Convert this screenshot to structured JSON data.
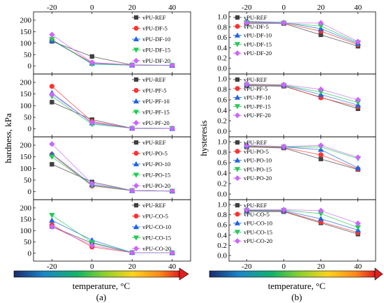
{
  "labels": {
    "hardness_ylabel": "hardness, kPa",
    "hysteresis_ylabel": "hysteresis",
    "xlabel_left": "temperature, °C",
    "xlabel_right": "temperature, °C",
    "sub_a": "(a)",
    "sub_b": "(b)"
  },
  "colors": {
    "REF": "#404040",
    "5": "#ff3333",
    "10": "#1e64e6",
    "15": "#22cc55",
    "20": "#cc66ff"
  },
  "chart_data": [
    {
      "type": "line",
      "quantity": "hardness",
      "group": "DF",
      "x": [
        -20,
        0,
        20,
        40
      ],
      "xlim": [
        -25,
        45
      ],
      "ylim": [
        -10,
        215
      ],
      "xticks": [
        -20,
        0,
        20,
        40
      ],
      "yticks": [
        0,
        50,
        100,
        150,
        200
      ],
      "series": [
        {
          "name": "vPU-REF",
          "key": "REF",
          "values": [
            108,
            42,
            5,
            3
          ]
        },
        {
          "name": "vPU-DF-5",
          "key": "5",
          "values": [
            113,
            15,
            5,
            3
          ]
        },
        {
          "name": "vPU-DF-10",
          "key": "10",
          "values": [
            112,
            12,
            4,
            3
          ]
        },
        {
          "name": "vPU-DF-15",
          "key": "15",
          "values": [
            117,
            8,
            4,
            3
          ]
        },
        {
          "name": "vPU-DF-20",
          "key": "20",
          "values": [
            137,
            16,
            5,
            4
          ]
        }
      ]
    },
    {
      "type": "line",
      "quantity": "hardness",
      "group": "PF",
      "x": [
        -20,
        0,
        20,
        40
      ],
      "xlim": [
        -25,
        45
      ],
      "ylim": [
        -10,
        215
      ],
      "xticks": [
        -20,
        0,
        20,
        40
      ],
      "yticks": [
        0,
        50,
        100,
        150,
        200
      ],
      "series": [
        {
          "name": "vPU-REF",
          "key": "REF",
          "values": [
            115,
            40,
            3,
            2
          ]
        },
        {
          "name": "vPU-PF-5",
          "key": "5",
          "values": [
            183,
            32,
            3,
            2
          ]
        },
        {
          "name": "vPU-PF-10",
          "key": "10",
          "values": [
            155,
            25,
            3,
            2
          ]
        },
        {
          "name": "vPU-PF-15",
          "key": "15",
          "values": [
            140,
            20,
            3,
            2
          ]
        },
        {
          "name": "vPU-PF-20",
          "key": "20",
          "values": [
            148,
            28,
            3,
            2
          ]
        }
      ]
    },
    {
      "type": "line",
      "quantity": "hardness",
      "group": "PO",
      "x": [
        -20,
        0,
        20,
        40
      ],
      "xlim": [
        -25,
        45
      ],
      "ylim": [
        -10,
        215
      ],
      "xticks": [
        -20,
        0,
        20,
        40
      ],
      "yticks": [
        0,
        50,
        100,
        150,
        200
      ],
      "series": [
        {
          "name": "vPU-REF",
          "key": "REF",
          "values": [
            118,
            42,
            5,
            3
          ]
        },
        {
          "name": "vPU-PO-5",
          "key": "5",
          "values": [
            160,
            25,
            5,
            3
          ]
        },
        {
          "name": "vPU-PO-10",
          "key": "10",
          "values": [
            163,
            30,
            5,
            3
          ]
        },
        {
          "name": "vPU-PO-15",
          "key": "15",
          "values": [
            150,
            28,
            5,
            3
          ]
        },
        {
          "name": "vPU-PO-20",
          "key": "20",
          "values": [
            205,
            35,
            5,
            3
          ]
        }
      ]
    },
    {
      "type": "line",
      "quantity": "hardness",
      "group": "CO",
      "x": [
        -20,
        0,
        20,
        40
      ],
      "xlim": [
        -25,
        45
      ],
      "ylim": [
        -10,
        215
      ],
      "xticks": [
        -20,
        0,
        20,
        40
      ],
      "yticks": [
        0,
        50,
        100,
        150,
        200
      ],
      "series": [
        {
          "name": "vPU-REF",
          "key": "REF",
          "values": [
            118,
            45,
            3,
            2
          ]
        },
        {
          "name": "vPU-CO-5",
          "key": "5",
          "values": [
            125,
            28,
            3,
            2
          ]
        },
        {
          "name": "vPU-CO-10",
          "key": "10",
          "values": [
            145,
            58,
            3,
            2
          ]
        },
        {
          "name": "vPU-CO-15",
          "key": "15",
          "values": [
            168,
            48,
            3,
            2
          ]
        },
        {
          "name": "vPU-CO-20",
          "key": "20",
          "values": [
            117,
            35,
            3,
            2
          ]
        }
      ]
    },
    {
      "type": "line",
      "quantity": "hysteresis",
      "group": "DF",
      "x": [
        -20,
        0,
        20,
        40
      ],
      "xlim": [
        -25,
        45
      ],
      "ylim": [
        0,
        1.0
      ],
      "xticks": [
        -20,
        0,
        20,
        40
      ],
      "yticks": [
        0,
        0.2,
        0.4,
        0.6,
        0.8,
        1.0
      ],
      "series": [
        {
          "name": "vPU-REF",
          "key": "REF",
          "values": [
            0.87,
            0.87,
            0.65,
            0.43
          ]
        },
        {
          "name": "vPU-DF-5",
          "key": "5",
          "values": [
            0.9,
            0.88,
            0.72,
            0.46
          ]
        },
        {
          "name": "vPU-DF-10",
          "key": "10",
          "values": [
            0.91,
            0.89,
            0.77,
            0.48
          ]
        },
        {
          "name": "vPU-DF-15",
          "key": "15",
          "values": [
            0.89,
            0.88,
            0.82,
            0.5
          ]
        },
        {
          "name": "vPU-DF-20",
          "key": "20",
          "values": [
            0.88,
            0.88,
            0.88,
            0.52
          ]
        }
      ]
    },
    {
      "type": "line",
      "quantity": "hysteresis",
      "group": "PF",
      "x": [
        -20,
        0,
        20,
        40
      ],
      "xlim": [
        -25,
        45
      ],
      "ylim": [
        0,
        1.0
      ],
      "xticks": [
        -20,
        0,
        20,
        40
      ],
      "yticks": [
        0,
        0.2,
        0.4,
        0.6,
        0.8,
        1.0
      ],
      "series": [
        {
          "name": "vPU-REF",
          "key": "REF",
          "values": [
            0.87,
            0.86,
            0.65,
            0.43
          ]
        },
        {
          "name": "vPU-PF-5",
          "key": "5",
          "values": [
            0.88,
            0.87,
            0.64,
            0.47
          ]
        },
        {
          "name": "vPU-PF-10",
          "key": "10",
          "values": [
            0.89,
            0.88,
            0.7,
            0.5
          ]
        },
        {
          "name": "vPU-PF-15",
          "key": "15",
          "values": [
            0.89,
            0.88,
            0.75,
            0.55
          ]
        },
        {
          "name": "vPU-PF-20",
          "key": "20",
          "values": [
            0.9,
            0.89,
            0.8,
            0.6
          ]
        }
      ]
    },
    {
      "type": "line",
      "quantity": "hysteresis",
      "group": "PO",
      "x": [
        -20,
        0,
        20,
        40
      ],
      "xlim": [
        -25,
        45
      ],
      "ylim": [
        0,
        1.0
      ],
      "xticks": [
        -20,
        0,
        20,
        40
      ],
      "yticks": [
        0,
        0.2,
        0.4,
        0.6,
        0.8,
        1.0
      ],
      "series": [
        {
          "name": "vPU-REF",
          "key": "REF",
          "values": [
            0.9,
            0.88,
            0.67,
            0.47
          ]
        },
        {
          "name": "vPU-PO-5",
          "key": "5",
          "values": [
            0.91,
            0.89,
            0.75,
            0.48
          ]
        },
        {
          "name": "vPU-PO-10",
          "key": "10",
          "values": [
            0.92,
            0.9,
            0.85,
            0.5
          ]
        },
        {
          "name": "vPU-PO-15",
          "key": "15",
          "values": [
            0.92,
            0.9,
            0.9,
            0.68
          ]
        },
        {
          "name": "vPU-PO-20",
          "key": "20",
          "values": [
            0.93,
            0.91,
            0.93,
            0.7
          ]
        }
      ]
    },
    {
      "type": "line",
      "quantity": "hysteresis",
      "group": "CO",
      "x": [
        -20,
        0,
        20,
        40
      ],
      "xlim": [
        -25,
        45
      ],
      "ylim": [
        0,
        1.0
      ],
      "xticks": [
        -20,
        0,
        20,
        40
      ],
      "yticks": [
        0,
        0.2,
        0.4,
        0.6,
        0.8,
        1.0
      ],
      "series": [
        {
          "name": "vPU-REF",
          "key": "REF",
          "values": [
            0.87,
            0.86,
            0.64,
            0.42
          ]
        },
        {
          "name": "vPU-CO-5",
          "key": "5",
          "values": [
            0.88,
            0.87,
            0.66,
            0.45
          ]
        },
        {
          "name": "vPU-CO-10",
          "key": "10",
          "values": [
            0.88,
            0.88,
            0.72,
            0.5
          ]
        },
        {
          "name": "vPU-CO-15",
          "key": "15",
          "values": [
            0.89,
            0.89,
            0.82,
            0.55
          ]
        },
        {
          "name": "vPU-CO-20",
          "key": "20",
          "values": [
            0.9,
            0.9,
            0.88,
            0.63
          ]
        }
      ]
    }
  ]
}
